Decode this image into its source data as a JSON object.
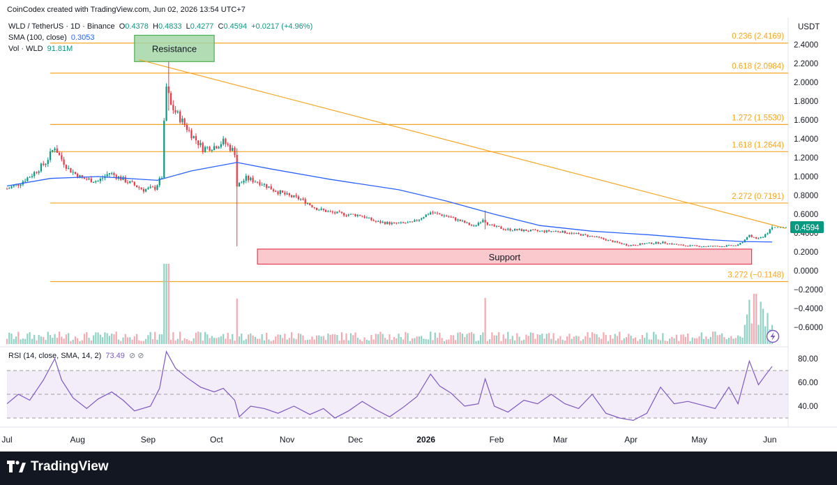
{
  "watermark": "CoinCodex created with TradingView.com, Jun 02, 2026 13:54 UTC+7",
  "legend": {
    "symbol": "WLD / TetherUS · 1D · Binance",
    "o_label": "O",
    "o": "0.4378",
    "h_label": "H",
    "h": "0.4833",
    "l_label": "L",
    "l": "0.4277",
    "c_label": "C",
    "c": "0.4594",
    "change": "+0.0217 (+4.96%)",
    "sma_label": "SMA (100, close)",
    "sma_value": "0.3053",
    "vol_label": "Vol · WLD",
    "vol_value": "91.81M",
    "rsi_label": "RSI (14, close, SMA, 14, 2)",
    "rsi_value": "73.49"
  },
  "brand": "TradingView",
  "chart_data": [
    {
      "type": "candlestick",
      "title": "WLD / TetherUS · 1D · Binance",
      "y_unit": "USDT",
      "ylim": [
        -0.7,
        2.55
      ],
      "y_ticks": [
        "2.4000",
        "2.2000",
        "2.0000",
        "1.8000",
        "1.6000",
        "1.4000",
        "1.2000",
        "1.0000",
        "0.8000",
        "0.6000",
        "0.4000",
        "0.2000",
        "0.0000",
        "−0.2000",
        "−0.4000",
        "−0.6000"
      ],
      "x_ticks": [
        "Jul",
        "Aug",
        "Sep",
        "Oct",
        "Nov",
        "Dec",
        "2026",
        "Feb",
        "Mar",
        "Apr",
        "May",
        "Jun"
      ],
      "last_price": "0.4594",
      "price_path": [
        [
          "2025-07-01",
          0.87
        ],
        [
          "2025-07-06",
          0.92
        ],
        [
          "2025-07-12",
          1.02
        ],
        [
          "2025-07-18",
          1.15
        ],
        [
          "2025-07-22",
          1.32
        ],
        [
          "2025-07-24",
          1.22
        ],
        [
          "2025-07-28",
          1.08
        ],
        [
          "2025-08-03",
          0.98
        ],
        [
          "2025-08-10",
          0.95
        ],
        [
          "2025-08-15",
          1.04
        ],
        [
          "2025-08-20",
          0.98
        ],
        [
          "2025-08-25",
          0.92
        ],
        [
          "2025-08-30",
          0.86
        ],
        [
          "2025-09-04",
          0.88
        ],
        [
          "2025-09-07",
          1.0
        ],
        [
          "2025-09-08",
          1.55
        ],
        [
          "2025-09-09",
          1.95
        ],
        [
          "2025-09-11",
          1.75
        ],
        [
          "2025-09-15",
          1.62
        ],
        [
          "2025-09-20",
          1.45
        ],
        [
          "2025-09-25",
          1.3
        ],
        [
          "2025-09-30",
          1.32
        ],
        [
          "2025-10-04",
          1.37
        ],
        [
          "2025-10-09",
          1.26
        ],
        [
          "2025-10-10",
          0.9
        ],
        [
          "2025-10-14",
          0.98
        ],
        [
          "2025-10-20",
          0.94
        ],
        [
          "2025-10-26",
          0.86
        ],
        [
          "2025-11-01",
          0.8
        ],
        [
          "2025-11-07",
          0.76
        ],
        [
          "2025-11-14",
          0.66
        ],
        [
          "2025-11-20",
          0.62
        ],
        [
          "2025-11-26",
          0.6
        ],
        [
          "2025-12-03",
          0.59
        ],
        [
          "2025-12-10",
          0.52
        ],
        [
          "2025-12-18",
          0.5
        ],
        [
          "2025-12-26",
          0.51
        ],
        [
          "2026-01-03",
          0.62
        ],
        [
          "2026-01-10",
          0.58
        ],
        [
          "2026-01-17",
          0.52
        ],
        [
          "2026-01-22",
          0.47
        ],
        [
          "2026-01-26",
          0.55
        ],
        [
          "2026-01-29",
          0.48
        ],
        [
          "2026-02-05",
          0.44
        ],
        [
          "2026-02-12",
          0.43
        ],
        [
          "2026-02-20",
          0.42
        ],
        [
          "2026-02-28",
          0.42
        ],
        [
          "2026-03-08",
          0.39
        ],
        [
          "2026-03-16",
          0.36
        ],
        [
          "2026-03-24",
          0.31
        ],
        [
          "2026-03-31",
          0.27
        ],
        [
          "2026-04-08",
          0.29
        ],
        [
          "2026-04-15",
          0.3
        ],
        [
          "2026-04-23",
          0.27
        ],
        [
          "2026-05-01",
          0.26
        ],
        [
          "2026-05-10",
          0.26
        ],
        [
          "2026-05-18",
          0.27
        ],
        [
          "2026-05-23",
          0.37
        ],
        [
          "2026-05-27",
          0.34
        ],
        [
          "2026-05-30",
          0.38
        ],
        [
          "2026-06-02",
          0.4594
        ]
      ],
      "spikes": [
        {
          "date": "2025-09-10",
          "high": 2.22,
          "low": 1.7
        },
        {
          "date": "2025-10-10",
          "high": 1.3,
          "low": 0.26
        },
        {
          "date": "2026-01-27",
          "high": 0.64,
          "low": 0.44
        }
      ],
      "sma": {
        "name": "SMA (100, close)",
        "points": [
          [
            "2025-07-01",
            0.9
          ],
          [
            "2025-07-20",
            0.98
          ],
          [
            "2025-08-10",
            1.0
          ],
          [
            "2025-09-05",
            0.96
          ],
          [
            "2025-09-20",
            1.06
          ],
          [
            "2025-10-10",
            1.15
          ],
          [
            "2025-10-25",
            1.08
          ],
          [
            "2025-11-20",
            0.97
          ],
          [
            "2025-12-20",
            0.86
          ],
          [
            "2026-01-10",
            0.74
          ],
          [
            "2026-01-31",
            0.6
          ],
          [
            "2026-02-20",
            0.48
          ],
          [
            "2026-03-15",
            0.42
          ],
          [
            "2026-04-10",
            0.38
          ],
          [
            "2026-05-05",
            0.33
          ],
          [
            "2026-05-20",
            0.31
          ],
          [
            "2026-06-02",
            0.3053
          ]
        ],
        "color": "#2962ff"
      },
      "fib_levels": [
        {
          "label": "0.236 (2.4169)",
          "value": 2.4169
        },
        {
          "label": "0.618 (2.0984)",
          "value": 2.0984
        },
        {
          "label": "1.272 (1.5530)",
          "value": 1.553
        },
        {
          "label": "1.618 (1.2644)",
          "value": 1.2644
        },
        {
          "label": "2.272 (0.7191)",
          "value": 0.7191
        },
        {
          "label": "3.272 (−0.1148)",
          "value": -0.1148
        }
      ],
      "trendline": {
        "from": [
          "2025-08-28",
          2.24
        ],
        "to": [
          "2026-06-08",
          0.45
        ],
        "color": "#f6a623"
      },
      "zones": [
        {
          "label": "Resistance",
          "from": "2025-08-26",
          "to": "2025-09-30",
          "top": 2.5,
          "bottom": 2.22,
          "fill": "#a5d6a7",
          "stroke": "#4caf50"
        },
        {
          "label": "Support",
          "from": "2025-10-19",
          "to": "2026-05-24",
          "top": 0.23,
          "bottom": 0.07,
          "fill": "#f8c0c6",
          "stroke": "#e53950"
        }
      ],
      "colors": {
        "up": "#089981",
        "down": "#f23645",
        "fib": "#f6a623"
      }
    },
    {
      "type": "line",
      "title": "RSI (14, close, SMA, 14, 2)",
      "ylim": [
        25,
        88
      ],
      "y_ticks": [
        "80.00",
        "60.00",
        "40.00"
      ],
      "bands": [
        70,
        50,
        30
      ],
      "last_value": 73.49,
      "points": [
        [
          "2025-07-01",
          42
        ],
        [
          "2025-07-06",
          50
        ],
        [
          "2025-07-11",
          45
        ],
        [
          "2025-07-17",
          62
        ],
        [
          "2025-07-22",
          80
        ],
        [
          "2025-07-25",
          62
        ],
        [
          "2025-07-30",
          47
        ],
        [
          "2025-08-05",
          38
        ],
        [
          "2025-08-10",
          46
        ],
        [
          "2025-08-16",
          52
        ],
        [
          "2025-08-21",
          45
        ],
        [
          "2025-08-26",
          36
        ],
        [
          "2025-09-02",
          40
        ],
        [
          "2025-09-06",
          55
        ],
        [
          "2025-09-09",
          86
        ],
        [
          "2025-09-13",
          72
        ],
        [
          "2025-09-18",
          64
        ],
        [
          "2025-09-24",
          56
        ],
        [
          "2025-09-30",
          52
        ],
        [
          "2025-10-04",
          55
        ],
        [
          "2025-10-09",
          45
        ],
        [
          "2025-10-11",
          31
        ],
        [
          "2025-10-16",
          40
        ],
        [
          "2025-10-22",
          38
        ],
        [
          "2025-10-28",
          34
        ],
        [
          "2025-11-04",
          40
        ],
        [
          "2025-11-11",
          33
        ],
        [
          "2025-11-17",
          38
        ],
        [
          "2025-11-22",
          30
        ],
        [
          "2025-11-28",
          36
        ],
        [
          "2025-12-04",
          44
        ],
        [
          "2025-12-10",
          37
        ],
        [
          "2025-12-16",
          31
        ],
        [
          "2025-12-22",
          39
        ],
        [
          "2025-12-28",
          48
        ],
        [
          "2026-01-03",
          67
        ],
        [
          "2026-01-07",
          57
        ],
        [
          "2026-01-12",
          51
        ],
        [
          "2026-01-18",
          40
        ],
        [
          "2026-01-24",
          42
        ],
        [
          "2026-01-27",
          63
        ],
        [
          "2026-01-31",
          40
        ],
        [
          "2026-02-06",
          35
        ],
        [
          "2026-02-13",
          45
        ],
        [
          "2026-02-19",
          42
        ],
        [
          "2026-02-25",
          50
        ],
        [
          "2026-03-03",
          42
        ],
        [
          "2026-03-09",
          38
        ],
        [
          "2026-03-15",
          50
        ],
        [
          "2026-03-21",
          34
        ],
        [
          "2026-03-27",
          30
        ],
        [
          "2026-04-02",
          28
        ],
        [
          "2026-04-08",
          34
        ],
        [
          "2026-04-14",
          56
        ],
        [
          "2026-04-20",
          42
        ],
        [
          "2026-04-26",
          44
        ],
        [
          "2026-05-02",
          41
        ],
        [
          "2026-05-08",
          38
        ],
        [
          "2026-05-14",
          56
        ],
        [
          "2026-05-18",
          42
        ],
        [
          "2026-05-23",
          78
        ],
        [
          "2026-05-27",
          58
        ],
        [
          "2026-05-30",
          66
        ],
        [
          "2026-06-02",
          73.49
        ]
      ],
      "colors": {
        "line": "#7e57c2",
        "band_fill": "#ede7f6"
      }
    }
  ]
}
